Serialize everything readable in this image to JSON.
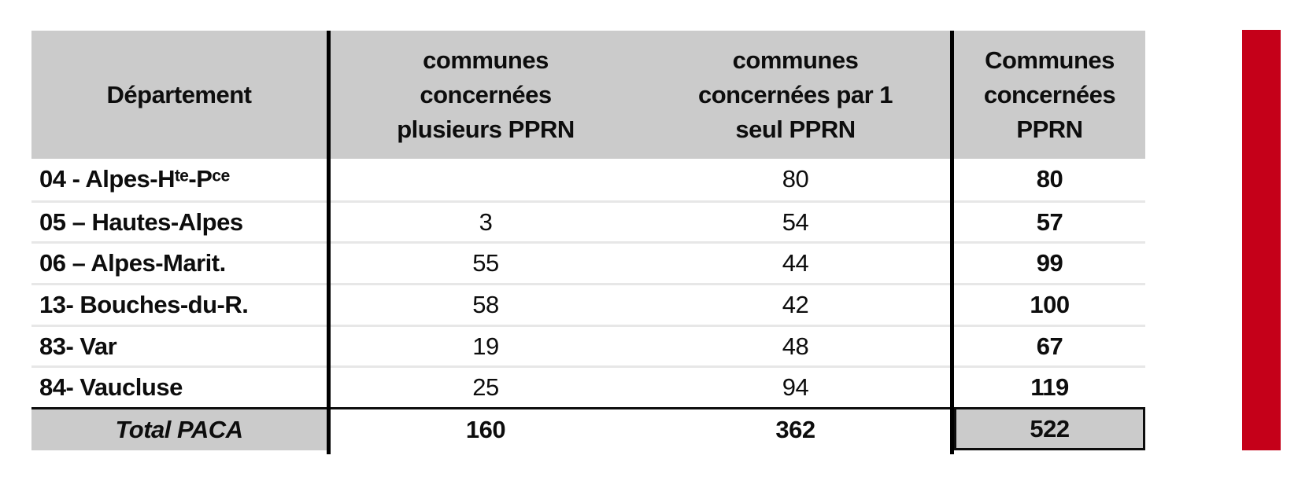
{
  "colors": {
    "header_bg": "#cbcbcb",
    "red_bar": "#c50019",
    "rule_black": "#000000",
    "row_separator": "#e7e7e7"
  },
  "table": {
    "header": {
      "col1": "Département",
      "col2": "communes\nconcernées\nplusieurs PPRN",
      "col3": "communes\nconcernées par 1\nseul PPRN",
      "col4": "Communes\nconcernées\nPPRN"
    },
    "rows": [
      {
        "dept": "04 - Alpes-Hᵗᵉ-Pᶜᵉ",
        "multi": "",
        "single": "80",
        "total": "80"
      },
      {
        "dept": "05 – Hautes-Alpes",
        "multi": "3",
        "single": "54",
        "total": "57"
      },
      {
        "dept": "06 – Alpes-Marit.",
        "multi": "55",
        "single": "44",
        "total": "99"
      },
      {
        "dept": "13- Bouches-du-R.",
        "multi": "58",
        "single": "42",
        "total": "100"
      },
      {
        "dept": "83- Var",
        "multi": "19",
        "single": "48",
        "total": "67"
      },
      {
        "dept": "84- Vaucluse",
        "multi": "25",
        "single": "94",
        "total": "119"
      }
    ],
    "total_row": {
      "label": "Total PACA",
      "multi": "160",
      "single": "362",
      "total": "522"
    }
  }
}
